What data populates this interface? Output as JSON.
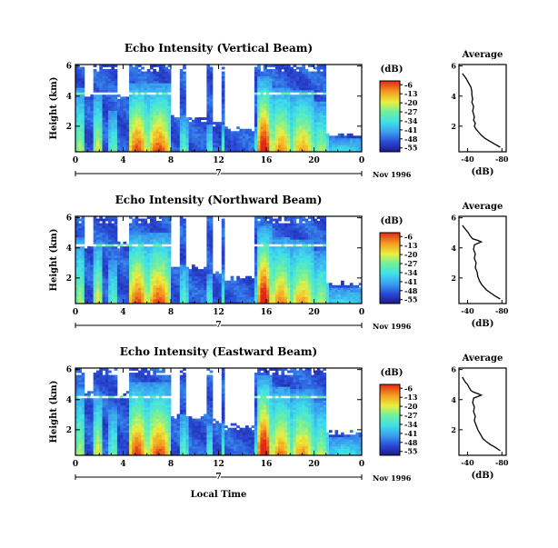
{
  "figure": {
    "panels": [
      {
        "title": "Echo Intensity (Vertical Beam)"
      },
      {
        "title": "Echo Intensity (Northward Beam)"
      },
      {
        "title": "Echo Intensity (Eastward Beam)"
      }
    ],
    "y_label": "Height (km)",
    "x_label": "Local Time",
    "date_label": "Nov 1996",
    "day_label": "7",
    "colorbar_unit": "(dB)",
    "profile_title": "Average",
    "profile_xlabel": "(dB)"
  },
  "chart_data": [
    {
      "type": "heatmap",
      "title": "Echo Intensity (Vertical Beam)",
      "xlabel": "",
      "ylabel": "Height (km)",
      "x_ticks": [
        "0",
        "4",
        "8",
        "12",
        "16",
        "20",
        "0"
      ],
      "y_ticks": [
        "2",
        "4",
        "6"
      ],
      "xlim": [
        0,
        24
      ],
      "ylim": [
        0.3,
        6.1
      ],
      "colorbar": {
        "label": "(dB)",
        "ticks": [
          "-6",
          "-13",
          "-20",
          "-27",
          "-34",
          "-41",
          "-48",
          "-55"
        ],
        "range": [
          -58,
          -3
        ]
      },
      "note": "Nov 1996, day 7"
    },
    {
      "type": "heatmap",
      "title": "Echo Intensity (Northward Beam)",
      "xlabel": "",
      "ylabel": "Height (km)",
      "x_ticks": [
        "0",
        "4",
        "8",
        "12",
        "16",
        "20",
        "0"
      ],
      "y_ticks": [
        "2",
        "4",
        "6"
      ],
      "xlim": [
        0,
        24
      ],
      "ylim": [
        0.3,
        6.1
      ],
      "colorbar": {
        "label": "(dB)",
        "ticks": [
          "-6",
          "-13",
          "-20",
          "-27",
          "-34",
          "-41",
          "-48",
          "-55"
        ],
        "range": [
          -58,
          -3
        ]
      },
      "note": "Nov 1996, day 7"
    },
    {
      "type": "heatmap",
      "title": "Echo Intensity (Eastward Beam)",
      "xlabel": "Local Time",
      "ylabel": "Height (km)",
      "x_ticks": [
        "0",
        "4",
        "8",
        "12",
        "16",
        "20",
        "0"
      ],
      "y_ticks": [
        "2",
        "4",
        "6"
      ],
      "xlim": [
        0,
        24
      ],
      "ylim": [
        0.3,
        6.1
      ],
      "colorbar": {
        "label": "(dB)",
        "ticks": [
          "-6",
          "-13",
          "-20",
          "-27",
          "-34",
          "-41",
          "-48",
          "-55"
        ],
        "range": [
          -58,
          -3
        ]
      },
      "note": "Nov 1996, day 7"
    },
    {
      "type": "line",
      "title": "Average",
      "xlabel": "(dB)",
      "x_ticks": [
        "-40",
        "-80"
      ],
      "y_ticks": [
        "2",
        "4",
        "6"
      ],
      "xlim": [
        -30,
        -85
      ],
      "ylim": [
        0.3,
        6.1
      ],
      "x": [
        -34,
        -38,
        -40,
        -42,
        -44,
        -45,
        -45,
        -46,
        -45,
        -47,
        -46,
        -47,
        -48,
        -47,
        -49,
        -48,
        -50,
        -53,
        -56,
        -60,
        -66,
        -72,
        -78
      ],
      "y": [
        5.5,
        5.2,
        5.0,
        4.8,
        4.6,
        4.3,
        4.1,
        3.8,
        3.6,
        3.3,
        3.0,
        2.8,
        2.6,
        2.4,
        2.2,
        2.0,
        1.8,
        1.6,
        1.4,
        1.2,
        1.0,
        0.8,
        0.6
      ]
    },
    {
      "type": "line",
      "title": "Average",
      "xlabel": "(dB)",
      "x_ticks": [
        "-40",
        "-80"
      ],
      "y_ticks": [
        "2",
        "4",
        "6"
      ],
      "xlim": [
        -30,
        -85
      ],
      "ylim": [
        0.3,
        6.1
      ],
      "x": [
        -34,
        -38,
        -41,
        -43,
        -46,
        -52,
        -56,
        -48,
        -47,
        -49,
        -48,
        -50,
        -49,
        -51,
        -52,
        -54,
        -56,
        -59,
        -62,
        -67,
        -72,
        -78
      ],
      "y": [
        5.5,
        5.2,
        5.0,
        4.8,
        4.6,
        4.5,
        4.4,
        4.2,
        3.9,
        3.6,
        3.3,
        3.0,
        2.7,
        2.4,
        2.1,
        1.8,
        1.6,
        1.4,
        1.2,
        1.0,
        0.8,
        0.6
      ]
    },
    {
      "type": "line",
      "title": "Average",
      "xlabel": "(dB)",
      "x_ticks": [
        "-40",
        "-80"
      ],
      "y_ticks": [
        "2",
        "4",
        "6"
      ],
      "xlim": [
        -30,
        -85
      ],
      "ylim": [
        0.3,
        6.1
      ],
      "x": [
        -34,
        -37,
        -40,
        -42,
        -44,
        -47,
        -52,
        -56,
        -47,
        -46,
        -48,
        -47,
        -49,
        -48,
        -50,
        -52,
        -55,
        -58,
        -62,
        -67,
        -73,
        -78
      ],
      "y": [
        5.5,
        5.2,
        5.0,
        4.8,
        4.6,
        4.5,
        4.4,
        4.3,
        4.1,
        3.8,
        3.5,
        3.2,
        2.9,
        2.6,
        2.3,
        2.0,
        1.7,
        1.4,
        1.2,
        1.0,
        0.8,
        0.6
      ]
    }
  ]
}
